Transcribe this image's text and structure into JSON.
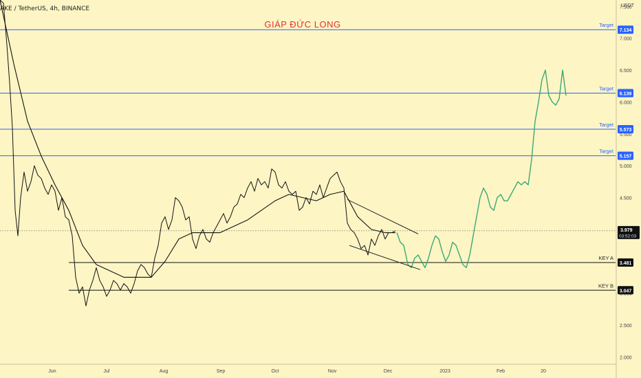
{
  "header": {
    "symbol_text": "AKE / TetherUS, 4h, BINANCE",
    "title": "GIÁP ĐỨC LONG",
    "currency": "USDT"
  },
  "colors": {
    "background": "#fdf5c4",
    "target_line": "#2962ff",
    "target_label_bg": "#2962ff",
    "key_line": "#111111",
    "key_label_bg": "#111111",
    "projection": "#3aa876",
    "price_line": "#111111",
    "moving_average": "#111111",
    "last_price_bg": "#111111",
    "axis_text": "#444444"
  },
  "chart_data": {
    "type": "line",
    "title": "GIÁP ĐỨC LONG",
    "symbol": "AKE / TetherUS, 4h, BINANCE",
    "y_unit": "USDT",
    "ylim": [
      1.95,
      7.6
    ],
    "y_ticks": [
      "2.000",
      "2.500",
      "3.000",
      "3.500",
      "4.000",
      "4.500",
      "5.000",
      "5.500",
      "6.000",
      "6.500",
      "7.000",
      "7.500"
    ],
    "x_ticks": [
      "Jun",
      "Jul",
      "Aug",
      "Sep",
      "Oct",
      "Nov",
      "Dec",
      "2023",
      "Feb",
      "20"
    ],
    "x_tick_index": [
      76,
      155,
      238,
      321,
      400,
      483,
      564,
      647,
      728,
      790
    ],
    "series": [
      {
        "role": "price",
        "x": [
          0,
          5,
          10,
          14,
          18,
          22,
          26,
          30,
          35,
          40,
          45,
          50,
          55,
          60,
          65,
          70,
          75,
          80,
          85,
          90,
          95,
          100,
          105,
          110,
          115,
          120,
          125,
          130,
          135,
          140,
          145,
          150,
          155,
          160,
          165,
          170,
          175,
          180,
          185,
          190,
          195,
          200,
          205,
          210,
          215,
          220,
          225,
          230,
          235,
          240,
          245,
          250,
          255,
          260,
          265,
          270,
          275,
          280,
          285,
          290,
          295,
          300,
          305,
          310,
          315,
          320,
          325,
          330,
          335,
          340,
          345,
          350,
          355,
          360,
          365,
          370,
          375,
          380,
          385,
          390,
          395,
          400,
          405,
          410,
          415,
          420,
          425,
          430,
          435,
          440,
          445,
          450,
          455,
          460,
          465,
          470,
          475,
          480,
          485,
          490,
          495,
          500,
          505,
          510,
          515,
          520,
          525,
          530,
          535,
          540,
          545,
          550,
          555,
          560,
          565,
          570,
          575
        ],
        "values": [
          7.6,
          7.55,
          6.9,
          6.3,
          5.6,
          4.3,
          3.9,
          4.5,
          4.9,
          4.6,
          4.75,
          5.0,
          4.85,
          4.8,
          4.65,
          4.55,
          4.7,
          4.6,
          4.3,
          4.5,
          4.2,
          4.15,
          3.9,
          3.25,
          3.0,
          3.1,
          2.8,
          3.05,
          3.2,
          3.4,
          3.2,
          3.1,
          2.95,
          3.05,
          3.2,
          3.15,
          3.05,
          3.15,
          3.1,
          3.0,
          3.15,
          3.35,
          3.45,
          3.4,
          3.3,
          3.25,
          3.55,
          3.75,
          4.1,
          4.2,
          4.0,
          4.15,
          4.5,
          4.45,
          4.35,
          4.15,
          4.2,
          3.85,
          3.7,
          3.9,
          4.0,
          3.85,
          3.8,
          3.95,
          4.05,
          4.15,
          4.25,
          4.1,
          4.2,
          4.35,
          4.4,
          4.55,
          4.5,
          4.65,
          4.75,
          4.6,
          4.8,
          4.7,
          4.75,
          4.65,
          4.95,
          4.9,
          4.7,
          4.65,
          4.75,
          4.6,
          4.55,
          4.6,
          4.3,
          4.35,
          4.5,
          4.4,
          4.6,
          4.55,
          4.7,
          4.5,
          4.65,
          4.8,
          4.85,
          4.9,
          4.75,
          4.65,
          4.1,
          4.0,
          3.95,
          3.85,
          3.7,
          3.75,
          3.6,
          3.85,
          3.75,
          3.9,
          4.0,
          3.85,
          3.95,
          3.95,
          3.98
        ]
      },
      {
        "role": "moving_average",
        "x": [
          0,
          20,
          40,
          60,
          80,
          100,
          120,
          140,
          160,
          180,
          200,
          220,
          240,
          260,
          280,
          300,
          320,
          340,
          360,
          380,
          400,
          420,
          440,
          460,
          480,
          500,
          520,
          540,
          560,
          575
        ],
        "values": [
          7.6,
          6.6,
          5.7,
          5.15,
          4.7,
          4.3,
          3.75,
          3.45,
          3.35,
          3.25,
          3.25,
          3.25,
          3.5,
          3.85,
          3.95,
          3.95,
          3.95,
          4.05,
          4.15,
          4.3,
          4.45,
          4.55,
          4.5,
          4.45,
          4.55,
          4.6,
          4.2,
          4.0,
          3.95,
          3.95
        ]
      },
      {
        "role": "projection",
        "x": [
          577,
          582,
          587,
          593,
          598,
          603,
          608,
          613,
          618,
          623,
          628,
          633,
          638,
          643,
          648,
          653,
          658,
          663,
          668,
          673,
          678,
          683,
          688,
          693,
          698,
          703,
          708,
          713,
          718,
          723,
          728,
          733,
          738,
          743,
          748,
          753,
          758,
          763,
          768,
          773,
          778,
          783,
          788,
          793,
          798,
          803,
          808,
          813,
          818,
          823
        ],
        "values": [
          3.95,
          3.8,
          3.75,
          3.45,
          3.4,
          3.55,
          3.6,
          3.5,
          3.4,
          3.55,
          3.75,
          3.9,
          3.85,
          3.65,
          3.5,
          3.6,
          3.8,
          3.75,
          3.6,
          3.45,
          3.4,
          3.6,
          3.9,
          4.2,
          4.5,
          4.65,
          4.55,
          4.35,
          4.3,
          4.5,
          4.55,
          4.45,
          4.45,
          4.55,
          4.65,
          4.75,
          4.7,
          4.75,
          4.7,
          5.1,
          5.7,
          6.0,
          6.35,
          6.5,
          6.1,
          6.0,
          5.95,
          6.05,
          6.5,
          6.1
        ]
      }
    ],
    "trend_lines": [
      {
        "x1": 505,
        "y1": 4.47,
        "x2": 608,
        "y2": 3.93
      },
      {
        "x1": 508,
        "y1": 3.75,
        "x2": 611,
        "y2": 3.37
      }
    ],
    "horizontal_levels": [
      {
        "value": 7.134,
        "label": "7.134",
        "note": "Target",
        "kind": "target",
        "start_x": 0
      },
      {
        "value": 6.139,
        "label": "6.139",
        "note": "Target",
        "kind": "target",
        "start_x": 0
      },
      {
        "value": 5.573,
        "label": "5.573",
        "note": "Target",
        "kind": "target",
        "start_x": 0
      },
      {
        "value": 5.157,
        "label": "5.157",
        "note": "Target",
        "kind": "target",
        "start_x": 0
      },
      {
        "value": 3.481,
        "label": "3.481",
        "note": "KEY A",
        "kind": "key",
        "start_x": 100
      },
      {
        "value": 3.047,
        "label": "3.047",
        "note": "KEY B",
        "kind": "key",
        "start_x": 100
      }
    ],
    "last_price": {
      "value": 3.979,
      "label": "3.979",
      "countdown": "03:52:03"
    }
  }
}
